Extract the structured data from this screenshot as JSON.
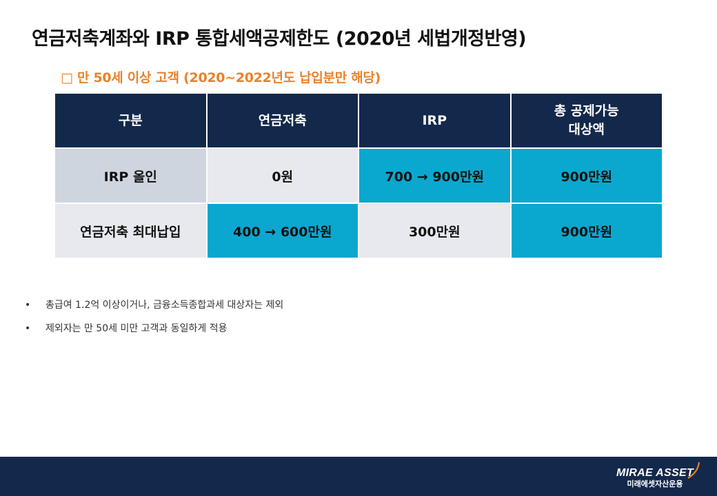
{
  "title": "연금저축계좌와 IRP 통합세액공제한도 (2020년 세법개정반영)",
  "subtitle": "□ 만 50세 이상 고객 (2020~2022년도 납입분만 해당)",
  "table": {
    "headers": [
      "구분",
      "연금저축",
      "IRP",
      "총 공제가능\n대상액"
    ],
    "rows": [
      [
        "IRP 올인",
        "0원",
        "700 → 900만원",
        "900만원"
      ],
      [
        "연금저축 최대납입",
        "400 → 600만원",
        "300만원",
        "900만원"
      ]
    ]
  },
  "notes": [
    "총급여 1.2억 이상이거나, 금융소득종합과세 대상자는 제외",
    "제외자는 만 50세 미만 고객과 동일하게 적용"
  ],
  "bullet": "•",
  "logo": {
    "en": "MIRAE ASSET",
    "ko": "미래에셋자산운용"
  },
  "colors": {
    "navy": "#13294b",
    "accent": "#0aa7cf",
    "orange": "#e8822a",
    "light": "#e7e9ee",
    "label": "#cfd5df"
  }
}
